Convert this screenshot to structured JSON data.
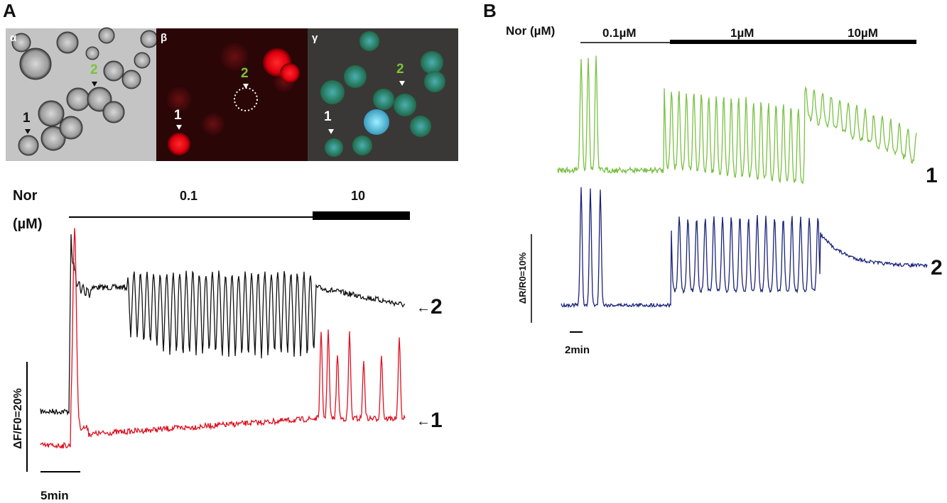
{
  "panel_a": {
    "label": "A",
    "images": [
      {
        "label": "α",
        "cells": [
          "2",
          "1"
        ]
      },
      {
        "label": "β",
        "cells": [
          "2",
          "1"
        ]
      },
      {
        "label": "γ",
        "cells": [
          "2",
          "1"
        ]
      }
    ],
    "stimulus": {
      "agent": "Nor",
      "unit": "(µM)",
      "doses": [
        "0.1",
        "10"
      ]
    },
    "traces": [
      "2",
      "1"
    ],
    "scale_y": "ΔF/F0=20%",
    "scale_x": "5min"
  },
  "panel_b": {
    "label": "B",
    "stimulus": {
      "agent": "Nor (µM)",
      "doses": [
        "0.1µM",
        "1µM",
        "10µM"
      ]
    },
    "traces": [
      "1",
      "2"
    ],
    "scale_y": "ΔR/R0=10%",
    "scale_x": "2min"
  }
}
